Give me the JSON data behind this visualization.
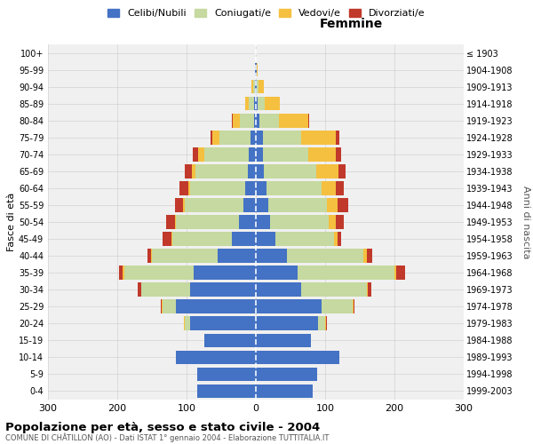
{
  "age_groups": [
    "0-4",
    "5-9",
    "10-14",
    "15-19",
    "20-24",
    "25-29",
    "30-34",
    "35-39",
    "40-44",
    "45-49",
    "50-54",
    "55-59",
    "60-64",
    "65-69",
    "70-74",
    "75-79",
    "80-84",
    "85-89",
    "90-94",
    "95-99",
    "100+"
  ],
  "birth_years": [
    "1999-2003",
    "1994-1998",
    "1989-1993",
    "1984-1988",
    "1979-1983",
    "1974-1978",
    "1969-1973",
    "1964-1968",
    "1959-1963",
    "1954-1958",
    "1949-1953",
    "1944-1948",
    "1939-1943",
    "1934-1938",
    "1929-1933",
    "1924-1928",
    "1919-1923",
    "1914-1918",
    "1909-1913",
    "1904-1908",
    "≤ 1903"
  ],
  "male_celibi": [
    85,
    85,
    115,
    75,
    95,
    115,
    95,
    90,
    55,
    35,
    25,
    18,
    15,
    12,
    10,
    8,
    3,
    2,
    1,
    1,
    0
  ],
  "male_coniugati": [
    0,
    0,
    0,
    0,
    8,
    20,
    70,
    100,
    95,
    85,
    90,
    85,
    80,
    75,
    65,
    45,
    20,
    8,
    3,
    0,
    0
  ],
  "male_vedovi": [
    0,
    0,
    0,
    0,
    1,
    1,
    1,
    2,
    1,
    2,
    2,
    2,
    3,
    5,
    8,
    10,
    10,
    5,
    2,
    0,
    0
  ],
  "male_divorziati": [
    0,
    0,
    0,
    0,
    0,
    1,
    5,
    5,
    5,
    12,
    12,
    12,
    12,
    10,
    8,
    3,
    2,
    0,
    0,
    0,
    0
  ],
  "female_celibi": [
    82,
    88,
    120,
    80,
    90,
    95,
    65,
    60,
    45,
    28,
    20,
    18,
    15,
    12,
    10,
    10,
    5,
    3,
    1,
    1,
    0
  ],
  "female_coniugati": [
    0,
    0,
    0,
    0,
    10,
    45,
    95,
    140,
    110,
    85,
    85,
    85,
    80,
    75,
    65,
    55,
    28,
    10,
    3,
    0,
    0
  ],
  "female_vedovi": [
    0,
    0,
    0,
    0,
    1,
    1,
    2,
    3,
    5,
    5,
    10,
    15,
    20,
    32,
    40,
    50,
    42,
    22,
    8,
    2,
    0
  ],
  "female_divorziati": [
    0,
    0,
    0,
    0,
    1,
    1,
    5,
    12,
    8,
    5,
    12,
    15,
    12,
    10,
    8,
    5,
    2,
    0,
    0,
    0,
    0
  ],
  "colors": {
    "celibi": "#4472c4",
    "coniugati": "#c5d9a0",
    "vedovi": "#f5c040",
    "divorziati": "#c0392b"
  },
  "title": "Popolazione per età, sesso e stato civile - 2004",
  "subtitle": "COMUNE DI CHÂTILLON (AO) - Dati ISTAT 1° gennaio 2004 - Elaborazione TUTTITALIA.IT",
  "xlabel_right": "Femmine",
  "ylabel_left": "Fasce di età",
  "ylabel_right": "Anni di nascita",
  "xlim": 300,
  "bg_color": "#f0f0f0",
  "grid_color": "#cccccc"
}
